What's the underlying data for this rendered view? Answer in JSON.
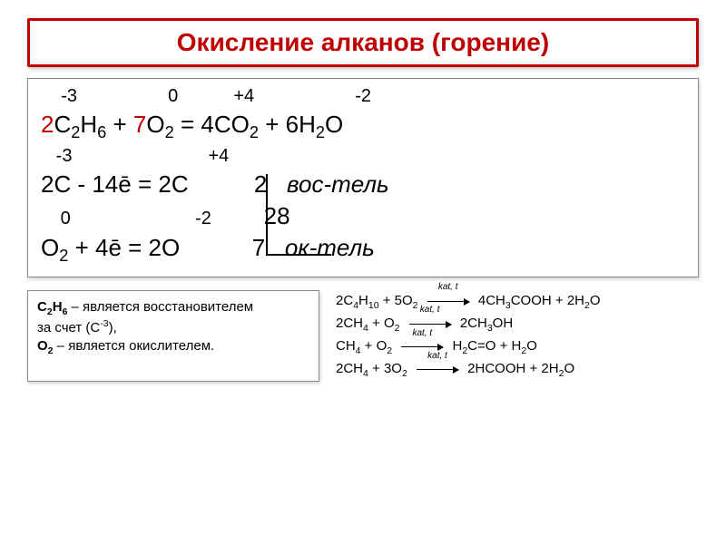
{
  "title": "Окисление алканов (горение)",
  "oxstates_top": {
    "c": "-3",
    "o": "0",
    "co2_c": "+4",
    "h2o_o": "-2"
  },
  "equation": {
    "coef1": "2",
    "reag1": "C",
    "reag1_sub": "2",
    "reag1b": "H",
    "reag1b_sub": "6",
    "plus1": " + ",
    "coef2": "7",
    "reag2": "O",
    "reag2_sub": "2",
    "eq": " = ",
    "coef3": "4",
    "prod1": "CO",
    "prod1_sub": "2",
    "plus2": " + ",
    "coef4": "6",
    "prod2": "H",
    "prod2_sub": "2",
    "prod2b": "O"
  },
  "oxstates_mid": {
    "c": "-3",
    "cplus": "+4"
  },
  "half1": {
    "left": "2C - 14ē = 2C",
    "mult": "2",
    "label": "вос-тель"
  },
  "lcm_row": {
    "o_ox": "0",
    "o_prod": "-2",
    "lcm": "28"
  },
  "half2": {
    "left_a": "O",
    "left_sub": "2",
    "left_b": " + 4ē = 2O",
    "mult": "7",
    "label": "ок-тель"
  },
  "aux": {
    "l1a": "C",
    "l1sub": "2",
    "l1b": "H",
    "l1sub2": "6",
    "l1c": " – является восстановителем",
    "l2a": "за счет (C",
    "l2sup": "-3",
    "l2b": "),",
    "l3a": "O",
    "l3sub": "2",
    "l3b": " – является окислителем."
  },
  "arrow_label": "kat, t",
  "rxns": [
    {
      "lhs_html": "2C<sub>4</sub>H<sub>10</sub> + 5O<sub>2</sub>",
      "rhs_html": "4CH<sub>3</sub>COOH + 2H<sub>2</sub>O"
    },
    {
      "lhs_html": "2CH<sub>4</sub> + O<sub>2</sub>",
      "rhs_html": "2CH<sub>3</sub>OH"
    },
    {
      "lhs_html": "CH<sub>4</sub> + O<sub>2</sub>",
      "rhs_html": "H<sub>2</sub>C=O + H<sub>2</sub>O"
    },
    {
      "lhs_html": "2CH<sub>4</sub> + 3O<sub>2</sub>",
      "rhs_html": "2HCOOH + 2H<sub>2</sub>O"
    }
  ],
  "colors": {
    "accent": "#c00000",
    "border": "#888888",
    "text": "#000000"
  }
}
